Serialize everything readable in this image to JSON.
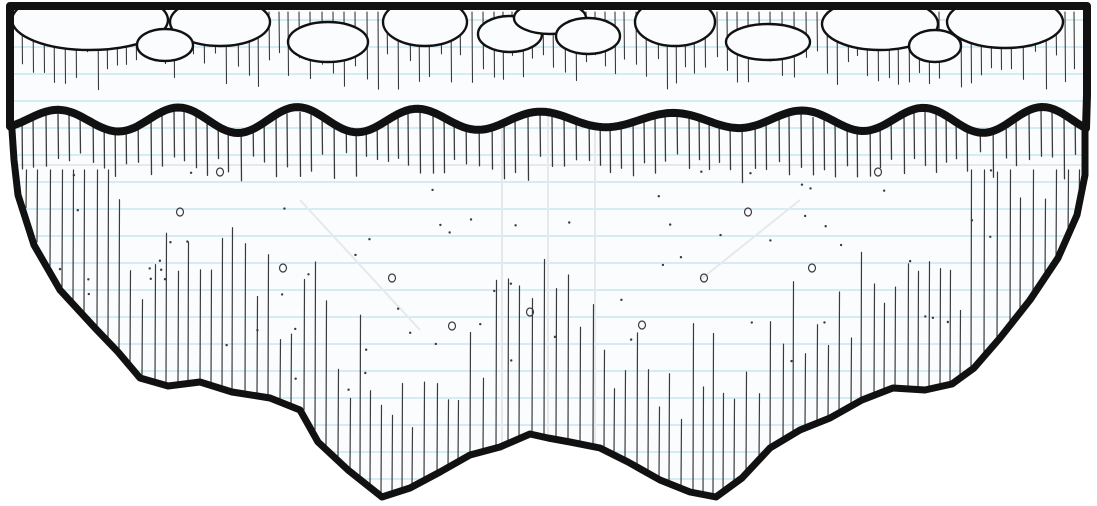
{
  "scene": {
    "type": "hand-drawn floating island terrain sprite on lined notebook paper",
    "paper": {
      "color": "#fbfcfd",
      "rule_color": "#bfe3ef",
      "crease_color": "#e6e9ec"
    },
    "ink_color": "#111111",
    "hatch_color": "#3a3a3a",
    "rocks_visible": 12,
    "sections": [
      "top-ledge",
      "island-body"
    ]
  }
}
